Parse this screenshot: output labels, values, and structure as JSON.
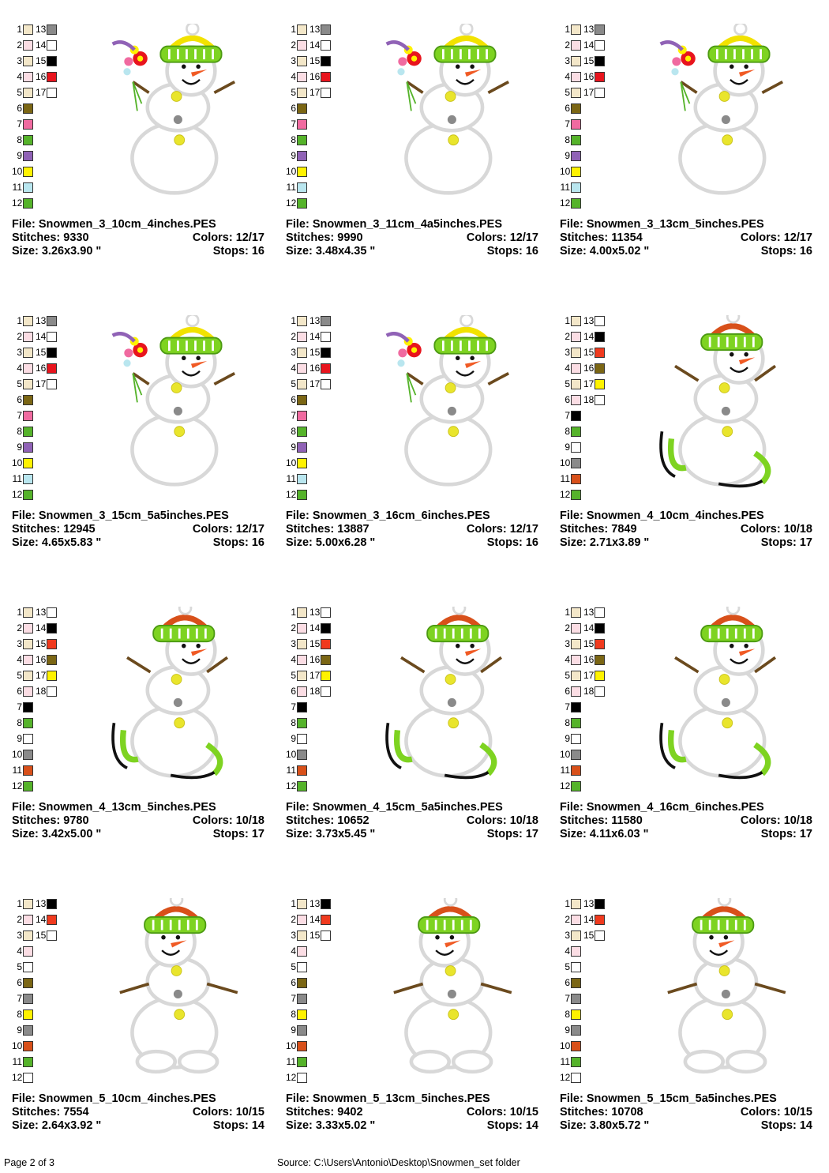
{
  "designs": [
    {
      "file": "File: Snowmen_3_10cm_4inches.PES",
      "stitches": "Stitches: 9330",
      "colors": "Colors: 12/17",
      "size": "Size: 3.26x3.90 \"",
      "stops": "Stops: 16",
      "style": "flowers",
      "left": [
        {
          "n": "1",
          "c": "#f3e7c9"
        },
        {
          "n": "2",
          "c": "#fbdde4"
        },
        {
          "n": "3",
          "c": "#f3e7c9"
        },
        {
          "n": "4",
          "c": "#fbdde4"
        },
        {
          "n": "5",
          "c": "#f3e7c9"
        },
        {
          "n": "6",
          "c": "#7b6614"
        },
        {
          "n": "7",
          "c": "#f06aa0"
        },
        {
          "n": "8",
          "c": "#55b32a"
        },
        {
          "n": "9",
          "c": "#9062b6"
        },
        {
          "n": "10",
          "c": "#fff200"
        },
        {
          "n": "11",
          "c": "#b9e6ef"
        },
        {
          "n": "12",
          "c": "#55b32a"
        }
      ],
      "right": [
        {
          "n": "13",
          "c": "#8a8a8a"
        },
        {
          "n": "14",
          "c": "#ffffff"
        },
        {
          "n": "15",
          "c": "#000000"
        },
        {
          "n": "16",
          "c": "#e8141d"
        },
        {
          "n": "17",
          "c": "#ffffff"
        }
      ]
    },
    {
      "file": "File: Snowmen_3_11cm_4a5inches.PES",
      "stitches": "Stitches: 9990",
      "colors": "Colors: 12/17",
      "size": "Size: 3.48x4.35 \"",
      "stops": "Stops: 16",
      "style": "flowers",
      "left": [
        {
          "n": "1",
          "c": "#f3e7c9"
        },
        {
          "n": "2",
          "c": "#fbdde4"
        },
        {
          "n": "3",
          "c": "#f3e7c9"
        },
        {
          "n": "4",
          "c": "#fbdde4"
        },
        {
          "n": "5",
          "c": "#f3e7c9"
        },
        {
          "n": "6",
          "c": "#7b6614"
        },
        {
          "n": "7",
          "c": "#f06aa0"
        },
        {
          "n": "8",
          "c": "#55b32a"
        },
        {
          "n": "9",
          "c": "#9062b6"
        },
        {
          "n": "10",
          "c": "#fff200"
        },
        {
          "n": "11",
          "c": "#b9e6ef"
        },
        {
          "n": "12",
          "c": "#55b32a"
        }
      ],
      "right": [
        {
          "n": "13",
          "c": "#8a8a8a"
        },
        {
          "n": "14",
          "c": "#ffffff"
        },
        {
          "n": "15",
          "c": "#000000"
        },
        {
          "n": "16",
          "c": "#e8141d"
        },
        {
          "n": "17",
          "c": "#ffffff"
        }
      ]
    },
    {
      "file": "File: Snowmen_3_13cm_5inches.PES",
      "stitches": "Stitches: 11354",
      "colors": "Colors: 12/17",
      "size": "Size: 4.00x5.02 \"",
      "stops": "Stops: 16",
      "style": "flowers",
      "left": [
        {
          "n": "1",
          "c": "#f3e7c9"
        },
        {
          "n": "2",
          "c": "#fbdde4"
        },
        {
          "n": "3",
          "c": "#f3e7c9"
        },
        {
          "n": "4",
          "c": "#fbdde4"
        },
        {
          "n": "5",
          "c": "#f3e7c9"
        },
        {
          "n": "6",
          "c": "#7b6614"
        },
        {
          "n": "7",
          "c": "#f06aa0"
        },
        {
          "n": "8",
          "c": "#55b32a"
        },
        {
          "n": "9",
          "c": "#9062b6"
        },
        {
          "n": "10",
          "c": "#fff200"
        },
        {
          "n": "11",
          "c": "#b9e6ef"
        },
        {
          "n": "12",
          "c": "#55b32a"
        }
      ],
      "right": [
        {
          "n": "13",
          "c": "#8a8a8a"
        },
        {
          "n": "14",
          "c": "#ffffff"
        },
        {
          "n": "15",
          "c": "#000000"
        },
        {
          "n": "16",
          "c": "#e8141d"
        },
        {
          "n": "17",
          "c": "#ffffff"
        }
      ]
    },
    {
      "file": "File: Snowmen_3_15cm_5a5inches.PES",
      "stitches": "Stitches: 12945",
      "colors": "Colors: 12/17",
      "size": "Size: 4.65x5.83 \"",
      "stops": "Stops: 16",
      "style": "flowers",
      "left": [
        {
          "n": "1",
          "c": "#f3e7c9"
        },
        {
          "n": "2",
          "c": "#fbdde4"
        },
        {
          "n": "3",
          "c": "#f3e7c9"
        },
        {
          "n": "4",
          "c": "#fbdde4"
        },
        {
          "n": "5",
          "c": "#f3e7c9"
        },
        {
          "n": "6",
          "c": "#7b6614"
        },
        {
          "n": "7",
          "c": "#f06aa0"
        },
        {
          "n": "8",
          "c": "#55b32a"
        },
        {
          "n": "9",
          "c": "#9062b6"
        },
        {
          "n": "10",
          "c": "#fff200"
        },
        {
          "n": "11",
          "c": "#b9e6ef"
        },
        {
          "n": "12",
          "c": "#55b32a"
        }
      ],
      "right": [
        {
          "n": "13",
          "c": "#8a8a8a"
        },
        {
          "n": "14",
          "c": "#ffffff"
        },
        {
          "n": "15",
          "c": "#000000"
        },
        {
          "n": "16",
          "c": "#e8141d"
        },
        {
          "n": "17",
          "c": "#ffffff"
        }
      ]
    },
    {
      "file": "File: Snowmen_3_16cm_6inches.PES",
      "stitches": "Stitches: 13887",
      "colors": "Colors: 12/17",
      "size": "Size: 5.00x6.28 \"",
      "stops": "Stops: 16",
      "style": "flowers",
      "left": [
        {
          "n": "1",
          "c": "#f3e7c9"
        },
        {
          "n": "2",
          "c": "#fbdde4"
        },
        {
          "n": "3",
          "c": "#f3e7c9"
        },
        {
          "n": "4",
          "c": "#fbdde4"
        },
        {
          "n": "5",
          "c": "#f3e7c9"
        },
        {
          "n": "6",
          "c": "#7b6614"
        },
        {
          "n": "7",
          "c": "#f06aa0"
        },
        {
          "n": "8",
          "c": "#55b32a"
        },
        {
          "n": "9",
          "c": "#9062b6"
        },
        {
          "n": "10",
          "c": "#fff200"
        },
        {
          "n": "11",
          "c": "#b9e6ef"
        },
        {
          "n": "12",
          "c": "#55b32a"
        }
      ],
      "right": [
        {
          "n": "13",
          "c": "#8a8a8a"
        },
        {
          "n": "14",
          "c": "#ffffff"
        },
        {
          "n": "15",
          "c": "#000000"
        },
        {
          "n": "16",
          "c": "#e8141d"
        },
        {
          "n": "17",
          "c": "#ffffff"
        }
      ]
    },
    {
      "file": "File: Snowmen_4_10cm_4inches.PES",
      "stitches": "Stitches: 7849",
      "colors": "Colors: 10/18",
      "size": "Size: 2.71x3.89 \"",
      "stops": "Stops: 17",
      "style": "skates",
      "left": [
        {
          "n": "1",
          "c": "#f3e7c9"
        },
        {
          "n": "2",
          "c": "#fbdde4"
        },
        {
          "n": "3",
          "c": "#f3e7c9"
        },
        {
          "n": "4",
          "c": "#fbdde4"
        },
        {
          "n": "5",
          "c": "#f3e7c9"
        },
        {
          "n": "6",
          "c": "#fbdde4"
        },
        {
          "n": "7",
          "c": "#000000"
        },
        {
          "n": "8",
          "c": "#55b32a"
        },
        {
          "n": "9",
          "c": "#ffffff"
        },
        {
          "n": "10",
          "c": "#8a8a8a"
        },
        {
          "n": "11",
          "c": "#d8501a"
        },
        {
          "n": "12",
          "c": "#55b32a"
        }
      ],
      "right": [
        {
          "n": "13",
          "c": "#ffffff"
        },
        {
          "n": "14",
          "c": "#000000"
        },
        {
          "n": "15",
          "c": "#f03a1e"
        },
        {
          "n": "16",
          "c": "#7b6614"
        },
        {
          "n": "17",
          "c": "#fff200"
        },
        {
          "n": "18",
          "c": "#ffffff"
        }
      ]
    },
    {
      "file": "File: Snowmen_4_13cm_5inches.PES",
      "stitches": "Stitches: 9780",
      "colors": "Colors: 10/18",
      "size": "Size: 3.42x5.00 \"",
      "stops": "Stops: 17",
      "style": "skates",
      "left": [
        {
          "n": "1",
          "c": "#f3e7c9"
        },
        {
          "n": "2",
          "c": "#fbdde4"
        },
        {
          "n": "3",
          "c": "#f3e7c9"
        },
        {
          "n": "4",
          "c": "#fbdde4"
        },
        {
          "n": "5",
          "c": "#f3e7c9"
        },
        {
          "n": "6",
          "c": "#fbdde4"
        },
        {
          "n": "7",
          "c": "#000000"
        },
        {
          "n": "8",
          "c": "#55b32a"
        },
        {
          "n": "9",
          "c": "#ffffff"
        },
        {
          "n": "10",
          "c": "#8a8a8a"
        },
        {
          "n": "11",
          "c": "#d8501a"
        },
        {
          "n": "12",
          "c": "#55b32a"
        }
      ],
      "right": [
        {
          "n": "13",
          "c": "#ffffff"
        },
        {
          "n": "14",
          "c": "#000000"
        },
        {
          "n": "15",
          "c": "#f03a1e"
        },
        {
          "n": "16",
          "c": "#7b6614"
        },
        {
          "n": "17",
          "c": "#fff200"
        },
        {
          "n": "18",
          "c": "#ffffff"
        }
      ]
    },
    {
      "file": "File: Snowmen_4_15cm_5a5inches.PES",
      "stitches": "Stitches: 10652",
      "colors": "Colors: 10/18",
      "size": "Size: 3.73x5.45 \"",
      "stops": "Stops: 17",
      "style": "skates",
      "left": [
        {
          "n": "1",
          "c": "#f3e7c9"
        },
        {
          "n": "2",
          "c": "#fbdde4"
        },
        {
          "n": "3",
          "c": "#f3e7c9"
        },
        {
          "n": "4",
          "c": "#fbdde4"
        },
        {
          "n": "5",
          "c": "#f3e7c9"
        },
        {
          "n": "6",
          "c": "#fbdde4"
        },
        {
          "n": "7",
          "c": "#000000"
        },
        {
          "n": "8",
          "c": "#55b32a"
        },
        {
          "n": "9",
          "c": "#ffffff"
        },
        {
          "n": "10",
          "c": "#8a8a8a"
        },
        {
          "n": "11",
          "c": "#d8501a"
        },
        {
          "n": "12",
          "c": "#55b32a"
        }
      ],
      "right": [
        {
          "n": "13",
          "c": "#ffffff"
        },
        {
          "n": "14",
          "c": "#000000"
        },
        {
          "n": "15",
          "c": "#f03a1e"
        },
        {
          "n": "16",
          "c": "#7b6614"
        },
        {
          "n": "17",
          "c": "#fff200"
        },
        {
          "n": "18",
          "c": "#ffffff"
        }
      ]
    },
    {
      "file": "File: Snowmen_4_16cm_6inches.PES",
      "stitches": "Stitches: 11580",
      "colors": "Colors: 10/18",
      "size": "Size: 4.11x6.03 \"",
      "stops": "Stops: 17",
      "style": "skates",
      "left": [
        {
          "n": "1",
          "c": "#f3e7c9"
        },
        {
          "n": "2",
          "c": "#fbdde4"
        },
        {
          "n": "3",
          "c": "#f3e7c9"
        },
        {
          "n": "4",
          "c": "#fbdde4"
        },
        {
          "n": "5",
          "c": "#f3e7c9"
        },
        {
          "n": "6",
          "c": "#fbdde4"
        },
        {
          "n": "7",
          "c": "#000000"
        },
        {
          "n": "8",
          "c": "#55b32a"
        },
        {
          "n": "9",
          "c": "#ffffff"
        },
        {
          "n": "10",
          "c": "#8a8a8a"
        },
        {
          "n": "11",
          "c": "#d8501a"
        },
        {
          "n": "12",
          "c": "#55b32a"
        }
      ],
      "right": [
        {
          "n": "13",
          "c": "#ffffff"
        },
        {
          "n": "14",
          "c": "#000000"
        },
        {
          "n": "15",
          "c": "#f03a1e"
        },
        {
          "n": "16",
          "c": "#7b6614"
        },
        {
          "n": "17",
          "c": "#fff200"
        },
        {
          "n": "18",
          "c": "#ffffff"
        }
      ]
    },
    {
      "file": "File: Snowmen_5_10cm_4inches.PES",
      "stitches": "Stitches: 7554",
      "colors": "Colors: 10/15",
      "size": "Size: 2.64x3.92 \"",
      "stops": "Stops: 14",
      "style": "arms",
      "left": [
        {
          "n": "1",
          "c": "#f3e7c9"
        },
        {
          "n": "2",
          "c": "#fbdde4"
        },
        {
          "n": "3",
          "c": "#f3e7c9"
        },
        {
          "n": "4",
          "c": "#fbdde4"
        },
        {
          "n": "5",
          "c": "#ffffff"
        },
        {
          "n": "6",
          "c": "#7b6614"
        },
        {
          "n": "7",
          "c": "#8a8a8a"
        },
        {
          "n": "8",
          "c": "#fff200"
        },
        {
          "n": "9",
          "c": "#8a8a8a"
        },
        {
          "n": "10",
          "c": "#d8501a"
        },
        {
          "n": "11",
          "c": "#55b32a"
        },
        {
          "n": "12",
          "c": "#ffffff"
        }
      ],
      "right": [
        {
          "n": "13",
          "c": "#000000"
        },
        {
          "n": "14",
          "c": "#f03a1e"
        },
        {
          "n": "15",
          "c": "#ffffff"
        }
      ]
    },
    {
      "file": "File: Snowmen_5_13cm_5inches.PES",
      "stitches": "Stitches: 9402",
      "colors": "Colors: 10/15",
      "size": "Size: 3.33x5.02 \"",
      "stops": "Stops: 14",
      "style": "arms",
      "left": [
        {
          "n": "1",
          "c": "#f3e7c9"
        },
        {
          "n": "2",
          "c": "#fbdde4"
        },
        {
          "n": "3",
          "c": "#f3e7c9"
        },
        {
          "n": "4",
          "c": "#fbdde4"
        },
        {
          "n": "5",
          "c": "#ffffff"
        },
        {
          "n": "6",
          "c": "#7b6614"
        },
        {
          "n": "7",
          "c": "#8a8a8a"
        },
        {
          "n": "8",
          "c": "#fff200"
        },
        {
          "n": "9",
          "c": "#8a8a8a"
        },
        {
          "n": "10",
          "c": "#d8501a"
        },
        {
          "n": "11",
          "c": "#55b32a"
        },
        {
          "n": "12",
          "c": "#ffffff"
        }
      ],
      "right": [
        {
          "n": "13",
          "c": "#000000"
        },
        {
          "n": "14",
          "c": "#f03a1e"
        },
        {
          "n": "15",
          "c": "#ffffff"
        }
      ]
    },
    {
      "file": "File: Snowmen_5_15cm_5a5inches.PES",
      "stitches": "Stitches: 10708",
      "colors": "Colors: 10/15",
      "size": "Size: 3.80x5.72 \"",
      "stops": "Stops: 14",
      "style": "arms",
      "left": [
        {
          "n": "1",
          "c": "#f3e7c9"
        },
        {
          "n": "2",
          "c": "#fbdde4"
        },
        {
          "n": "3",
          "c": "#f3e7c9"
        },
        {
          "n": "4",
          "c": "#fbdde4"
        },
        {
          "n": "5",
          "c": "#ffffff"
        },
        {
          "n": "6",
          "c": "#7b6614"
        },
        {
          "n": "7",
          "c": "#8a8a8a"
        },
        {
          "n": "8",
          "c": "#fff200"
        },
        {
          "n": "9",
          "c": "#8a8a8a"
        },
        {
          "n": "10",
          "c": "#d8501a"
        },
        {
          "n": "11",
          "c": "#55b32a"
        },
        {
          "n": "12",
          "c": "#ffffff"
        }
      ],
      "right": [
        {
          "n": "13",
          "c": "#000000"
        },
        {
          "n": "14",
          "c": "#f03a1e"
        },
        {
          "n": "15",
          "c": "#ffffff"
        }
      ]
    }
  ],
  "footer": {
    "page": "Page 2 of 3",
    "source": "Source: C:\\Users\\Antonio\\Desktop\\Snowmen_set folder"
  }
}
